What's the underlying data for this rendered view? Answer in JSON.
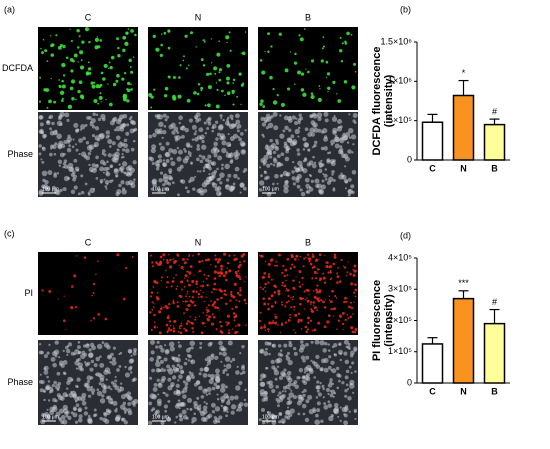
{
  "panels": [
    {
      "label": "(a)",
      "columns": [
        "C",
        "N",
        "B"
      ],
      "rows": [
        "DCFDA",
        "Phase"
      ],
      "scale_bars": [
        "100 μm",
        "100 μm",
        "100 μm"
      ]
    },
    {
      "label": "(c)",
      "columns": [
        "C",
        "N",
        "B"
      ],
      "rows": [
        "PI",
        "Phase"
      ],
      "scale_bars": [
        "100 μm",
        "100 μm",
        "100 μm"
      ]
    }
  ],
  "chart_data": [
    {
      "type": "bar",
      "panel_label": "(b)",
      "ylabel_lines": [
        "DCFDA fluorescence",
        "(intensity)"
      ],
      "categories": [
        "C",
        "N",
        "B"
      ],
      "values": [
        480000,
        820000,
        450000
      ],
      "errors": [
        100000,
        190000,
        70000
      ],
      "colors": [
        "#ffffff",
        "#f7931e",
        "#ffff99"
      ],
      "annotations": [
        null,
        "*",
        "#"
      ],
      "ylim": [
        0,
        1500000
      ],
      "yticks": [
        0,
        {
          "value": 500000,
          "label": "5×10⁵"
        },
        {
          "value": 1000000,
          "label": "1×10⁶"
        },
        {
          "value": 1500000,
          "label": "1.5×10⁶"
        }
      ]
    },
    {
      "type": "bar",
      "panel_label": "(d)",
      "ylabel_lines": [
        "PI fluorescence",
        "(intensity)"
      ],
      "categories": [
        "C",
        "N",
        "B"
      ],
      "values": [
        125000,
        270000,
        190000
      ],
      "errors": [
        20000,
        25000,
        45000
      ],
      "colors": [
        "#ffffff",
        "#f7931e",
        "#ffff99"
      ],
      "annotations": [
        null,
        "***",
        "#"
      ],
      "ylim": [
        0,
        400000
      ],
      "yticks": [
        0,
        {
          "value": 100000,
          "label": "1×10⁵"
        },
        {
          "value": 200000,
          "label": "2×10⁵"
        },
        {
          "value": 300000,
          "label": "3×10⁵"
        },
        {
          "value": 400000,
          "label": "4×10⁵"
        }
      ]
    }
  ]
}
